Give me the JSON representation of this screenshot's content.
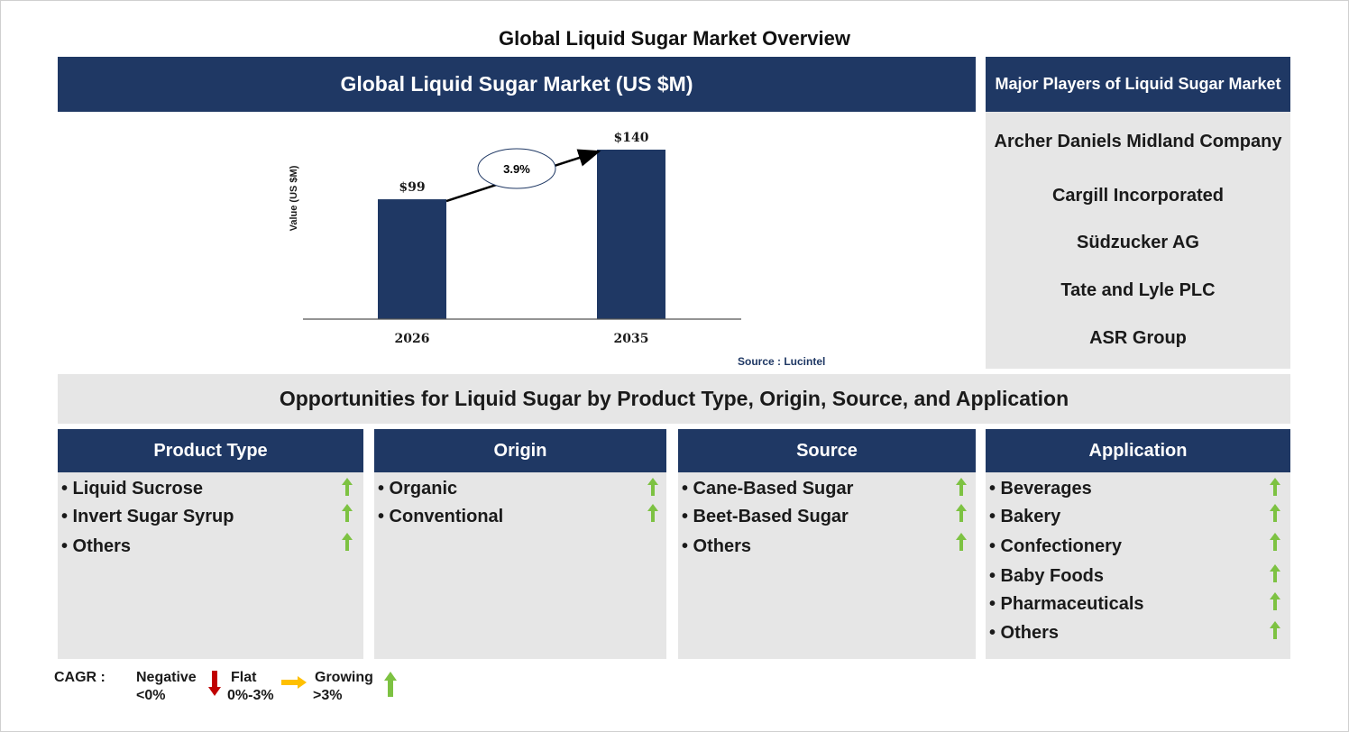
{
  "page_title": "Global Liquid Sugar Market Overview",
  "chart_header": "Global Liquid Sugar Market (US $M)",
  "players": {
    "header": "Major Players of Liquid Sugar Market",
    "items": [
      "Archer Daniels Midland Company",
      "Cargill Incorporated",
      "Südzucker AG",
      "Tate and Lyle PLC",
      "ASR Group"
    ]
  },
  "chart_data": {
    "type": "bar",
    "categories": [
      "2026",
      "2035"
    ],
    "values": [
      99,
      140
    ],
    "value_labels": [
      "$99",
      "$140"
    ],
    "ylabel": "Value (US $M)",
    "cagr_label": "3.9%",
    "bar_color": "#1f3864",
    "ylim": [
      0,
      160
    ]
  },
  "source": "Source : Lucintel",
  "opportunities_title": "Opportunities for Liquid Sugar by Product Type, Origin, Source, and Application",
  "segments": [
    {
      "title": "Product Type",
      "items": [
        "• Liquid Sucrose",
        "• Invert Sugar Syrup",
        "• Others"
      ]
    },
    {
      "title": "Origin",
      "items": [
        "• Organic",
        "• Conventional"
      ]
    },
    {
      "title": "Source",
      "items": [
        "• Cane-Based Sugar",
        "• Beet-Based Sugar",
        "• Others"
      ]
    },
    {
      "title": "Application",
      "items": [
        "• Beverages",
        "• Bakery",
        "• Confectionery",
        "• Baby Foods",
        "• Pharmaceuticals",
        "• Others"
      ]
    }
  ],
  "legend": {
    "cagr": "CAGR :",
    "negative": "Negative",
    "negative_range": "<0%",
    "flat": "Flat",
    "flat_range": "0%-3%",
    "growing": "Growing",
    "growing_range": ">3%"
  },
  "colors": {
    "navy": "#1f3864",
    "panel_grey": "#e6e6e6",
    "growing_arrow": "#7dc242",
    "flat_arrow": "#ffc000",
    "negative_arrow": "#c00000"
  },
  "icons": {
    "growing": "arrow-up-icon",
    "flat": "arrow-right-icon",
    "negative": "arrow-down-icon"
  }
}
